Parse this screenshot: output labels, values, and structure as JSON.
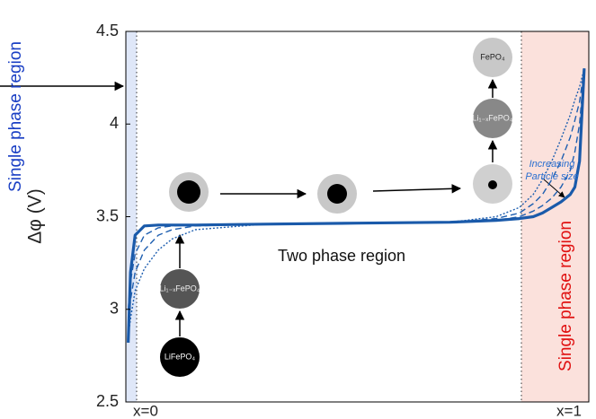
{
  "chart_data": {
    "type": "line",
    "ylabel": "Δφ (V)",
    "x": [
      0.005,
      0.01,
      0.02,
      0.04,
      0.07,
      0.1,
      0.15,
      0.3,
      0.5,
      0.7,
      0.8,
      0.85,
      0.88,
      0.9,
      0.92,
      0.94,
      0.96,
      0.97,
      0.98,
      0.99
    ],
    "xlim": [
      0,
      1
    ],
    "xticks": [
      {
        "value": 0,
        "label": "x=0"
      },
      {
        "value": 1,
        "label": "x=1"
      }
    ],
    "ylim": [
      2.5,
      4.5
    ],
    "yticks": [
      2.5,
      3,
      3.5,
      4,
      4.5
    ],
    "series": [
      {
        "color": "#1f5fb0",
        "style": "dotted",
        "values": [
          2.85,
          2.95,
          3.1,
          3.22,
          3.32,
          3.38,
          3.43,
          3.46,
          3.465,
          3.47,
          3.5,
          3.55,
          3.62,
          3.7,
          3.8,
          3.92,
          4.05,
          4.13,
          4.2,
          4.3
        ]
      },
      {
        "color": "#1f5fb0",
        "style": "dashed",
        "values": [
          2.9,
          3.05,
          3.2,
          3.32,
          3.4,
          3.43,
          3.45,
          3.46,
          3.465,
          3.47,
          3.49,
          3.52,
          3.57,
          3.62,
          3.7,
          3.8,
          3.93,
          4.02,
          4.12,
          4.3
        ]
      },
      {
        "color": "#1f5fb0",
        "style": "dashed",
        "values": [
          3.0,
          3.15,
          3.3,
          3.4,
          3.44,
          3.45,
          3.455,
          3.46,
          3.465,
          3.47,
          3.48,
          3.5,
          3.53,
          3.56,
          3.6,
          3.66,
          3.75,
          3.85,
          4.0,
          4.3
        ]
      },
      {
        "color": "#1a5aaa",
        "style": "solid",
        "values": [
          2.82,
          3.2,
          3.4,
          3.45,
          3.455,
          3.455,
          3.455,
          3.46,
          3.465,
          3.47,
          3.48,
          3.49,
          3.5,
          3.52,
          3.55,
          3.58,
          3.62,
          3.66,
          3.8,
          4.3
        ]
      }
    ],
    "annotations": [
      "Single phase region",
      "Single phase region",
      "Two phase region",
      "Increasing",
      "Particle size",
      "FePO₄",
      "Li₁₋ₓFePO₄",
      "Li₁₋ₓFePO₄",
      "LiFePO₄"
    ]
  }
}
